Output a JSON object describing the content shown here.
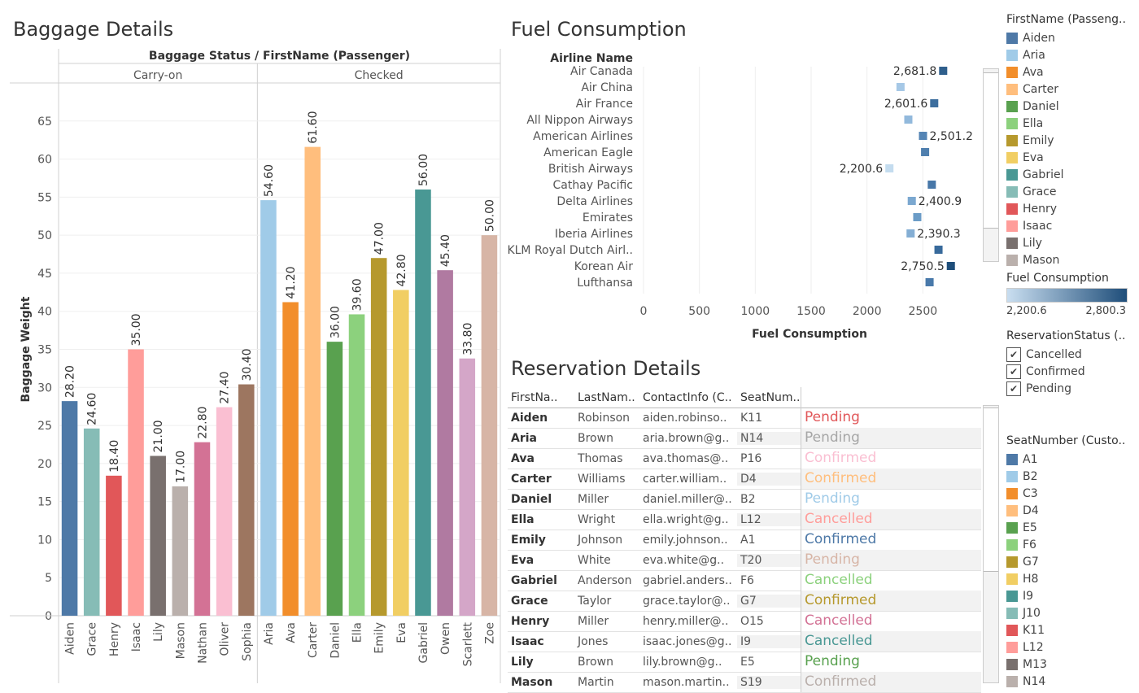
{
  "titles": {
    "baggage": "Baggage Details",
    "fuel": "Fuel Consumption",
    "reservation": "Reservation Details"
  },
  "baggage_chart": {
    "type": "bar",
    "header": "Baggage Status  /  FirstName (Passenger)",
    "ylabel": "Baggage Weight",
    "ylim": [
      0,
      70
    ],
    "yticks": [
      0,
      5,
      10,
      15,
      20,
      25,
      30,
      35,
      40,
      45,
      50,
      55,
      60,
      65
    ],
    "groups": [
      {
        "name": "Carry-on",
        "bars": [
          {
            "category": "Aiden",
            "value": 28.2,
            "label": "28.20",
            "color": "#4e79a7"
          },
          {
            "category": "Grace",
            "value": 24.6,
            "label": "24.60",
            "color": "#86bcb6"
          },
          {
            "category": "Henry",
            "value": 18.4,
            "label": "18.40",
            "color": "#e15759"
          },
          {
            "category": "Isaac",
            "value": 35.0,
            "label": "35.00",
            "color": "#ff9d9a"
          },
          {
            "category": "Lily",
            "value": 21.0,
            "label": "21.00",
            "color": "#79706e"
          },
          {
            "category": "Mason",
            "value": 17.0,
            "label": "17.00",
            "color": "#bab0ac"
          },
          {
            "category": "Nathan",
            "value": 22.8,
            "label": "22.80",
            "color": "#d37295"
          },
          {
            "category": "Oliver",
            "value": 27.4,
            "label": "27.40",
            "color": "#fabfd2"
          },
          {
            "category": "Sophia",
            "value": 30.4,
            "label": "30.40",
            "color": "#9d7660"
          }
        ]
      },
      {
        "name": "Checked",
        "bars": [
          {
            "category": "Aria",
            "value": 54.6,
            "label": "54.60",
            "color": "#a0cbe8"
          },
          {
            "category": "Ava",
            "value": 41.2,
            "label": "41.20",
            "color": "#f28e2b"
          },
          {
            "category": "Carter",
            "value": 61.6,
            "label": "61.60",
            "color": "#ffbe7d"
          },
          {
            "category": "Daniel",
            "value": 36.0,
            "label": "36.00",
            "color": "#59a14f"
          },
          {
            "category": "Ella",
            "value": 39.6,
            "label": "39.60",
            "color": "#8cd17d"
          },
          {
            "category": "Emily",
            "value": 47.0,
            "label": "47.00",
            "color": "#b6992d"
          },
          {
            "category": "Eva",
            "value": 42.8,
            "label": "42.80",
            "color": "#f1ce63"
          },
          {
            "category": "Gabriel",
            "value": 56.0,
            "label": "56.00",
            "color": "#499894"
          },
          {
            "category": "Owen",
            "value": 45.4,
            "label": "45.40",
            "color": "#b07aa1"
          },
          {
            "category": "Scarlett",
            "value": 33.8,
            "label": "33.80",
            "color": "#d4a6c8"
          },
          {
            "category": "Zoe",
            "value": 50.0,
            "label": "50.00",
            "color": "#d7b5a6"
          }
        ]
      }
    ]
  },
  "fuel_chart": {
    "type": "scatter",
    "ylabel": "Airline Name",
    "xlabel": "Fuel Consumption",
    "xlim": [
      0,
      3000
    ],
    "xticks": [
      0,
      500,
      1000,
      1500,
      2000,
      2500
    ],
    "points": [
      {
        "airline": "Air Canada",
        "value": 2681.8,
        "label": "2,681.8",
        "color": "#2f5f8c"
      },
      {
        "airline": "Air China",
        "value": 2300,
        "label": "",
        "color": "#a6c8e6"
      },
      {
        "airline": "Air France",
        "value": 2601.6,
        "label": "2,601.6",
        "color": "#3d6e9e"
      },
      {
        "airline": "All Nippon Airways",
        "value": 2370,
        "label": "",
        "color": "#92b9dc"
      },
      {
        "airline": "American Airlines",
        "value": 2501.2,
        "label": "2,501.2",
        "color": "#5484b4"
      },
      {
        "airline": "American Eagle",
        "value": 2520,
        "label": "",
        "color": "#4f7fae"
      },
      {
        "airline": "British Airways",
        "value": 2200.6,
        "label": "2,200.6",
        "color": "#c4dcef"
      },
      {
        "airline": "Cathay Pacific",
        "value": 2580,
        "label": "",
        "color": "#4777a8"
      },
      {
        "airline": "Delta Airlines",
        "value": 2400.9,
        "label": "2,400.9",
        "color": "#7ba8d0"
      },
      {
        "airline": "Emirates",
        "value": 2450,
        "label": "",
        "color": "#6b9cc7"
      },
      {
        "airline": "Iberia Airlines",
        "value": 2390.3,
        "label": "2,390.3",
        "color": "#84aed4"
      },
      {
        "airline": "KLM Royal Dutch Airl..",
        "value": 2640,
        "label": "",
        "color": "#386a9b"
      },
      {
        "airline": "Korean Air",
        "value": 2750.5,
        "label": "2,750.5",
        "color": "#1f4e7a"
      },
      {
        "airline": "Lufthansa",
        "value": 2560,
        "label": "",
        "color": "#4979aa"
      }
    ]
  },
  "reservation_table": {
    "columns": [
      "FirstNa..",
      "LastNam..",
      "ContactInfo (C..",
      "SeatNum.."
    ],
    "rows": [
      {
        "first": "Aiden",
        "last": "Robinson",
        "contact": "aiden.robinso..",
        "seat": "K11",
        "status": "Pending",
        "color": "#e15759"
      },
      {
        "first": "Aria",
        "last": "Brown",
        "contact": "aria.brown@g..",
        "seat": "N14",
        "status": "Pending",
        "color": "#a6a6a6"
      },
      {
        "first": "Ava",
        "last": "Thomas",
        "contact": "ava.thomas@..",
        "seat": "P16",
        "status": "Confirmed",
        "color": "#fabfd2"
      },
      {
        "first": "Carter",
        "last": "Williams",
        "contact": "carter.william..",
        "seat": "D4",
        "status": "Confirmed",
        "color": "#ffbe7d"
      },
      {
        "first": "Daniel",
        "last": "Miller",
        "contact": "daniel.miller@..",
        "seat": "B2",
        "status": "Pending",
        "color": "#a0cbe8"
      },
      {
        "first": "Ella",
        "last": "Wright",
        "contact": "ella.wright@g..",
        "seat": "L12",
        "status": "Cancelled",
        "color": "#ff9d9a"
      },
      {
        "first": "Emily",
        "last": "Johnson",
        "contact": "emily.johnson..",
        "seat": "A1",
        "status": "Confirmed",
        "color": "#4e79a7"
      },
      {
        "first": "Eva",
        "last": "White",
        "contact": "eva.white@g..",
        "seat": "T20",
        "status": "Pending",
        "color": "#d7b5a6"
      },
      {
        "first": "Gabriel",
        "last": "Anderson",
        "contact": "gabriel.anders..",
        "seat": "F6",
        "status": "Cancelled",
        "color": "#8cd17d"
      },
      {
        "first": "Grace",
        "last": "Taylor",
        "contact": "grace.taylor@..",
        "seat": "G7",
        "status": "Confirmed",
        "color": "#b6992d"
      },
      {
        "first": "Henry",
        "last": "Miller",
        "contact": "henry.miller@..",
        "seat": "O15",
        "status": "Cancelled",
        "color": "#d37295"
      },
      {
        "first": "Isaac",
        "last": "Jones",
        "contact": "isaac.jones@g..",
        "seat": "I9",
        "status": "Cancelled",
        "color": "#499894"
      },
      {
        "first": "Lily",
        "last": "Brown",
        "contact": "lily.brown@g..",
        "seat": "E5",
        "status": "Pending",
        "color": "#59a14f"
      },
      {
        "first": "Mason",
        "last": "Martin",
        "contact": "mason.martin..",
        "seat": "S19",
        "status": "Confirmed",
        "color": "#bab0ac"
      }
    ]
  },
  "legends": {
    "passenger": {
      "title": "FirstName (Passeng..",
      "items": [
        {
          "label": "Aiden",
          "color": "#4e79a7"
        },
        {
          "label": "Aria",
          "color": "#a0cbe8"
        },
        {
          "label": "Ava",
          "color": "#f28e2b"
        },
        {
          "label": "Carter",
          "color": "#ffbe7d"
        },
        {
          "label": "Daniel",
          "color": "#59a14f"
        },
        {
          "label": "Ella",
          "color": "#8cd17d"
        },
        {
          "label": "Emily",
          "color": "#b6992d"
        },
        {
          "label": "Eva",
          "color": "#f1ce63"
        },
        {
          "label": "Gabriel",
          "color": "#499894"
        },
        {
          "label": "Grace",
          "color": "#86bcb6"
        },
        {
          "label": "Henry",
          "color": "#e15759"
        },
        {
          "label": "Isaac",
          "color": "#ff9d9a"
        },
        {
          "label": "Lily",
          "color": "#79706e"
        },
        {
          "label": "Mason",
          "color": "#bab0ac"
        }
      ]
    },
    "fuel": {
      "title": "Fuel Consumption",
      "min_label": "2,200.6",
      "max_label": "2,800.3",
      "color_low": "#c9def0",
      "color_high": "#1f4e7a"
    },
    "reservation_status": {
      "title": "ReservationStatus (..",
      "items": [
        {
          "label": "Cancelled",
          "check": "✔"
        },
        {
          "label": "Confirmed",
          "check": "✔"
        },
        {
          "label": "Pending",
          "check": "✔"
        }
      ]
    },
    "seat": {
      "title": "SeatNumber (Custo..",
      "items": [
        {
          "label": "A1",
          "color": "#4e79a7"
        },
        {
          "label": "B2",
          "color": "#a0cbe8"
        },
        {
          "label": "C3",
          "color": "#f28e2b"
        },
        {
          "label": "D4",
          "color": "#ffbe7d"
        },
        {
          "label": "E5",
          "color": "#59a14f"
        },
        {
          "label": "F6",
          "color": "#8cd17d"
        },
        {
          "label": "G7",
          "color": "#b6992d"
        },
        {
          "label": "H8",
          "color": "#f1ce63"
        },
        {
          "label": "I9",
          "color": "#499894"
        },
        {
          "label": "J10",
          "color": "#86bcb6"
        },
        {
          "label": "K11",
          "color": "#e15759"
        },
        {
          "label": "L12",
          "color": "#ff9d9a"
        },
        {
          "label": "M13",
          "color": "#79706e"
        },
        {
          "label": "N14",
          "color": "#bab0ac"
        }
      ]
    }
  }
}
